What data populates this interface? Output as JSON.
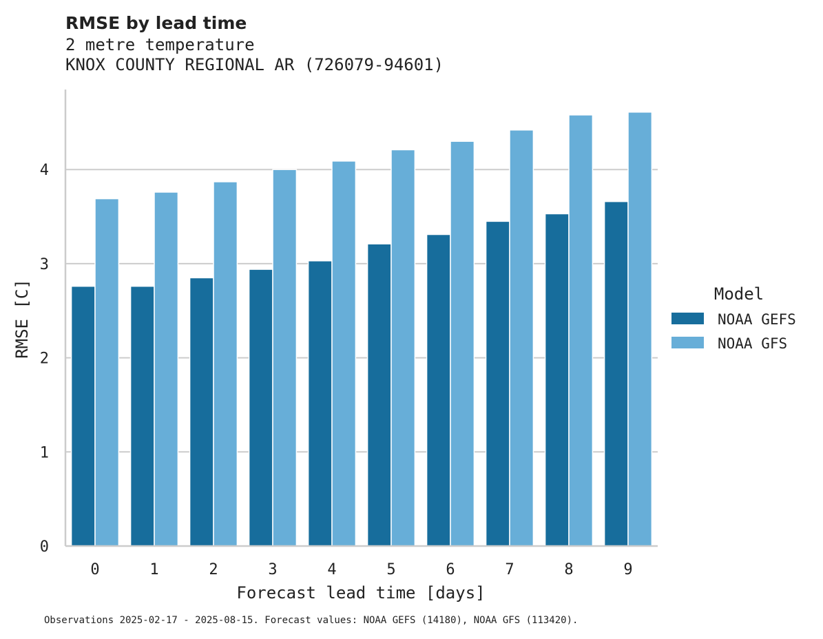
{
  "chart_data": {
    "type": "bar",
    "title": "RMSE by lead time",
    "subtitle_lines": [
      "2 metre temperature",
      "KNOX COUNTY REGIONAL AR (726079-94601)"
    ],
    "xlabel": "Forecast lead time [days]",
    "ylabel": "RMSE [C]",
    "categories": [
      "0",
      "1",
      "2",
      "3",
      "4",
      "5",
      "6",
      "7",
      "8",
      "9"
    ],
    "series": [
      {
        "name": "NOAA GEFS",
        "color": "#176d9c",
        "values": [
          2.76,
          2.76,
          2.85,
          2.94,
          3.03,
          3.21,
          3.31,
          3.45,
          3.53,
          3.66
        ]
      },
      {
        "name": "NOAA GFS",
        "color": "#67aed8",
        "values": [
          3.69,
          3.76,
          3.87,
          4.0,
          4.09,
          4.21,
          4.3,
          4.42,
          4.58,
          4.61
        ]
      }
    ],
    "ylim": [
      0,
      4.85
    ],
    "yticks": [
      0,
      1,
      2,
      3,
      4
    ],
    "grid": "horizontal",
    "legend": {
      "title": "Model",
      "placement": "right"
    },
    "footnote": "Observations 2025-02-17 - 2025-08-15. Forecast values: NOAA GEFS (14180), NOAA GFS (113420)."
  }
}
